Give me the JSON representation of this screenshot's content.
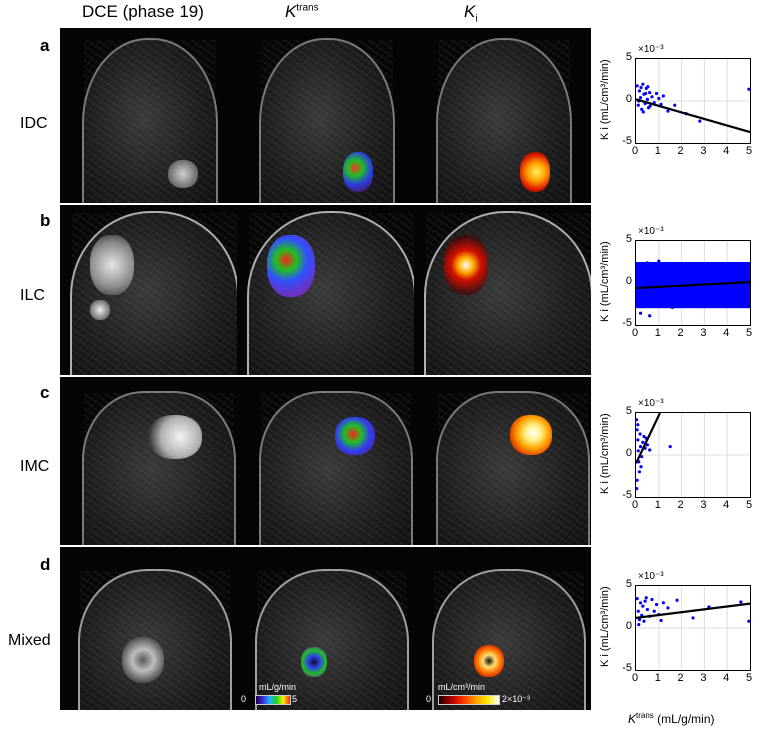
{
  "columns": {
    "dce": "DCE (phase 19)",
    "ktrans_main": "K",
    "ktrans_sup": "trans",
    "ki_main": "K",
    "ki_sub": "i"
  },
  "rows": [
    {
      "letter": "a",
      "label": "IDC"
    },
    {
      "letter": "b",
      "label": "ILC"
    },
    {
      "letter": "c",
      "label": "IMC"
    },
    {
      "letter": "d",
      "label": "Mixed"
    }
  ],
  "colorbars": {
    "ktrans": {
      "title": "mL/g/min",
      "min": "0",
      "max": "5",
      "colors": [
        "#200040",
        "#3b2bd9",
        "#1fb3ff",
        "#20d020",
        "#f4f400",
        "#ff2020"
      ]
    },
    "ki": {
      "title": "mL/cm³/min",
      "min": "0",
      "max": "2×10⁻³",
      "colors": [
        "#200000",
        "#b00000",
        "#ff3000",
        "#ff9a00",
        "#ffe600",
        "#ffffff"
      ]
    }
  },
  "plot_text": {
    "exponent": "×10⁻³",
    "ylabel": "K i (mL/cm³/min)",
    "xlabel_main": "K",
    "xlabel_sup": "trans",
    "xlabel_rest": " (mL/g/min)"
  },
  "chart_data": [
    {
      "type": "scatter",
      "panel": "a",
      "xlim": [
        0,
        5
      ],
      "ylim": [
        -5,
        5
      ],
      "xticks": [
        "0",
        "1",
        "2",
        "3",
        "4",
        "5"
      ],
      "yticks": [
        "5",
        "0",
        "-5"
      ],
      "grid": true,
      "point_color": "#0000ff",
      "fit_line": {
        "x": [
          0,
          5
        ],
        "y": [
          0.2,
          -3.7
        ]
      },
      "points": [
        [
          0.05,
          1.8
        ],
        [
          0.1,
          -0.5
        ],
        [
          0.15,
          1.2
        ],
        [
          0.2,
          0.4
        ],
        [
          0.25,
          -1.0
        ],
        [
          0.3,
          2.0
        ],
        [
          0.35,
          0.8
        ],
        [
          0.4,
          -0.3
        ],
        [
          0.45,
          1.5
        ],
        [
          0.5,
          0.2
        ],
        [
          0.55,
          -0.8
        ],
        [
          0.6,
          1.0
        ],
        [
          0.7,
          0.5
        ],
        [
          0.8,
          -0.2
        ],
        [
          0.9,
          0.9
        ],
        [
          1.0,
          0.3
        ],
        [
          1.1,
          -0.4
        ],
        [
          1.2,
          0.6
        ],
        [
          1.4,
          -1.2
        ],
        [
          1.7,
          -0.5
        ],
        [
          2.2,
          -1.5
        ],
        [
          2.8,
          -2.4
        ],
        [
          0.12,
          0.0
        ],
        [
          0.22,
          1.6
        ],
        [
          0.32,
          -1.3
        ],
        [
          0.42,
          0.9
        ],
        [
          0.52,
          1.7
        ],
        [
          0.62,
          -0.6
        ],
        [
          4.95,
          1.4
        ]
      ]
    },
    {
      "type": "scatter",
      "panel": "b",
      "xlim": [
        0,
        5
      ],
      "ylim": [
        -5,
        5
      ],
      "xticks": [
        "0",
        "1",
        "2",
        "3",
        "4",
        "5"
      ],
      "yticks": [
        "5",
        "0",
        "-5"
      ],
      "grid": true,
      "point_color": "#0000ff",
      "fit_line": {
        "x": [
          0,
          5
        ],
        "y": [
          -0.6,
          0.1
        ]
      },
      "band": {
        "x": [
          0,
          5
        ],
        "ymin": -3,
        "ymax": 2.5
      },
      "points": [
        [
          0.1,
          2.2
        ],
        [
          0.3,
          -2.8
        ],
        [
          0.5,
          2.4
        ],
        [
          0.8,
          -2.5
        ],
        [
          1.2,
          2.1
        ],
        [
          1.6,
          -2.9
        ],
        [
          2.0,
          2.3
        ],
        [
          2.5,
          -2.6
        ],
        [
          3.0,
          2.2
        ],
        [
          3.5,
          -2.4
        ],
        [
          4.0,
          2.0
        ],
        [
          4.5,
          -2.7
        ],
        [
          4.9,
          2.1
        ],
        [
          0.2,
          -3.6
        ],
        [
          0.6,
          -3.9
        ],
        [
          1.0,
          2.6
        ]
      ]
    },
    {
      "type": "scatter",
      "panel": "c",
      "xlim": [
        0,
        5
      ],
      "ylim": [
        -5,
        5
      ],
      "xticks": [
        "0",
        "1",
        "2",
        "3",
        "4",
        "5"
      ],
      "yticks": [
        "5",
        "0",
        "-5"
      ],
      "grid": true,
      "point_color": "#0000ff",
      "fit_line": {
        "x": [
          0,
          1.05
        ],
        "y": [
          -1.0,
          5.0
        ]
      },
      "points": [
        [
          0.02,
          4.2
        ],
        [
          0.05,
          3.0
        ],
        [
          0.08,
          1.8
        ],
        [
          0.1,
          0.5
        ],
        [
          0.12,
          -0.8
        ],
        [
          0.15,
          -2.0
        ],
        [
          0.05,
          -3.0
        ],
        [
          0.18,
          2.5
        ],
        [
          0.2,
          1.0
        ],
        [
          0.25,
          -0.2
        ],
        [
          0.3,
          1.5
        ],
        [
          0.35,
          2.2
        ],
        [
          0.4,
          0.8
        ],
        [
          0.45,
          2.0
        ],
        [
          0.5,
          1.2
        ],
        [
          0.6,
          0.6
        ],
        [
          1.5,
          1.0
        ],
        [
          0.03,
          -4.0
        ],
        [
          0.08,
          3.6
        ],
        [
          0.22,
          -1.4
        ]
      ]
    },
    {
      "type": "scatter",
      "panel": "d",
      "xlim": [
        0,
        5
      ],
      "ylim": [
        -5,
        5
      ],
      "xticks": [
        "0",
        "1",
        "2",
        "3",
        "4",
        "5"
      ],
      "yticks": [
        "5",
        "0",
        "-5"
      ],
      "grid": true,
      "point_color": "#0000ff",
      "fit_line": {
        "x": [
          0,
          5
        ],
        "y": [
          1.2,
          2.9
        ]
      },
      "points": [
        [
          0.05,
          3.5
        ],
        [
          0.1,
          2.0
        ],
        [
          0.15,
          1.0
        ],
        [
          0.2,
          3.0
        ],
        [
          0.25,
          1.5
        ],
        [
          0.3,
          2.6
        ],
        [
          0.35,
          0.8
        ],
        [
          0.4,
          3.2
        ],
        [
          0.5,
          2.2
        ],
        [
          0.6,
          1.4
        ],
        [
          0.7,
          3.4
        ],
        [
          0.8,
          2.0
        ],
        [
          0.9,
          2.8
        ],
        [
          1.0,
          1.6
        ],
        [
          1.2,
          3.0
        ],
        [
          1.4,
          2.4
        ],
        [
          1.8,
          3.3
        ],
        [
          2.5,
          1.2
        ],
        [
          3.2,
          2.5
        ],
        [
          4.6,
          3.1
        ],
        [
          4.95,
          0.8
        ],
        [
          0.12,
          0.4
        ],
        [
          0.45,
          3.6
        ],
        [
          1.1,
          0.9
        ]
      ]
    }
  ]
}
